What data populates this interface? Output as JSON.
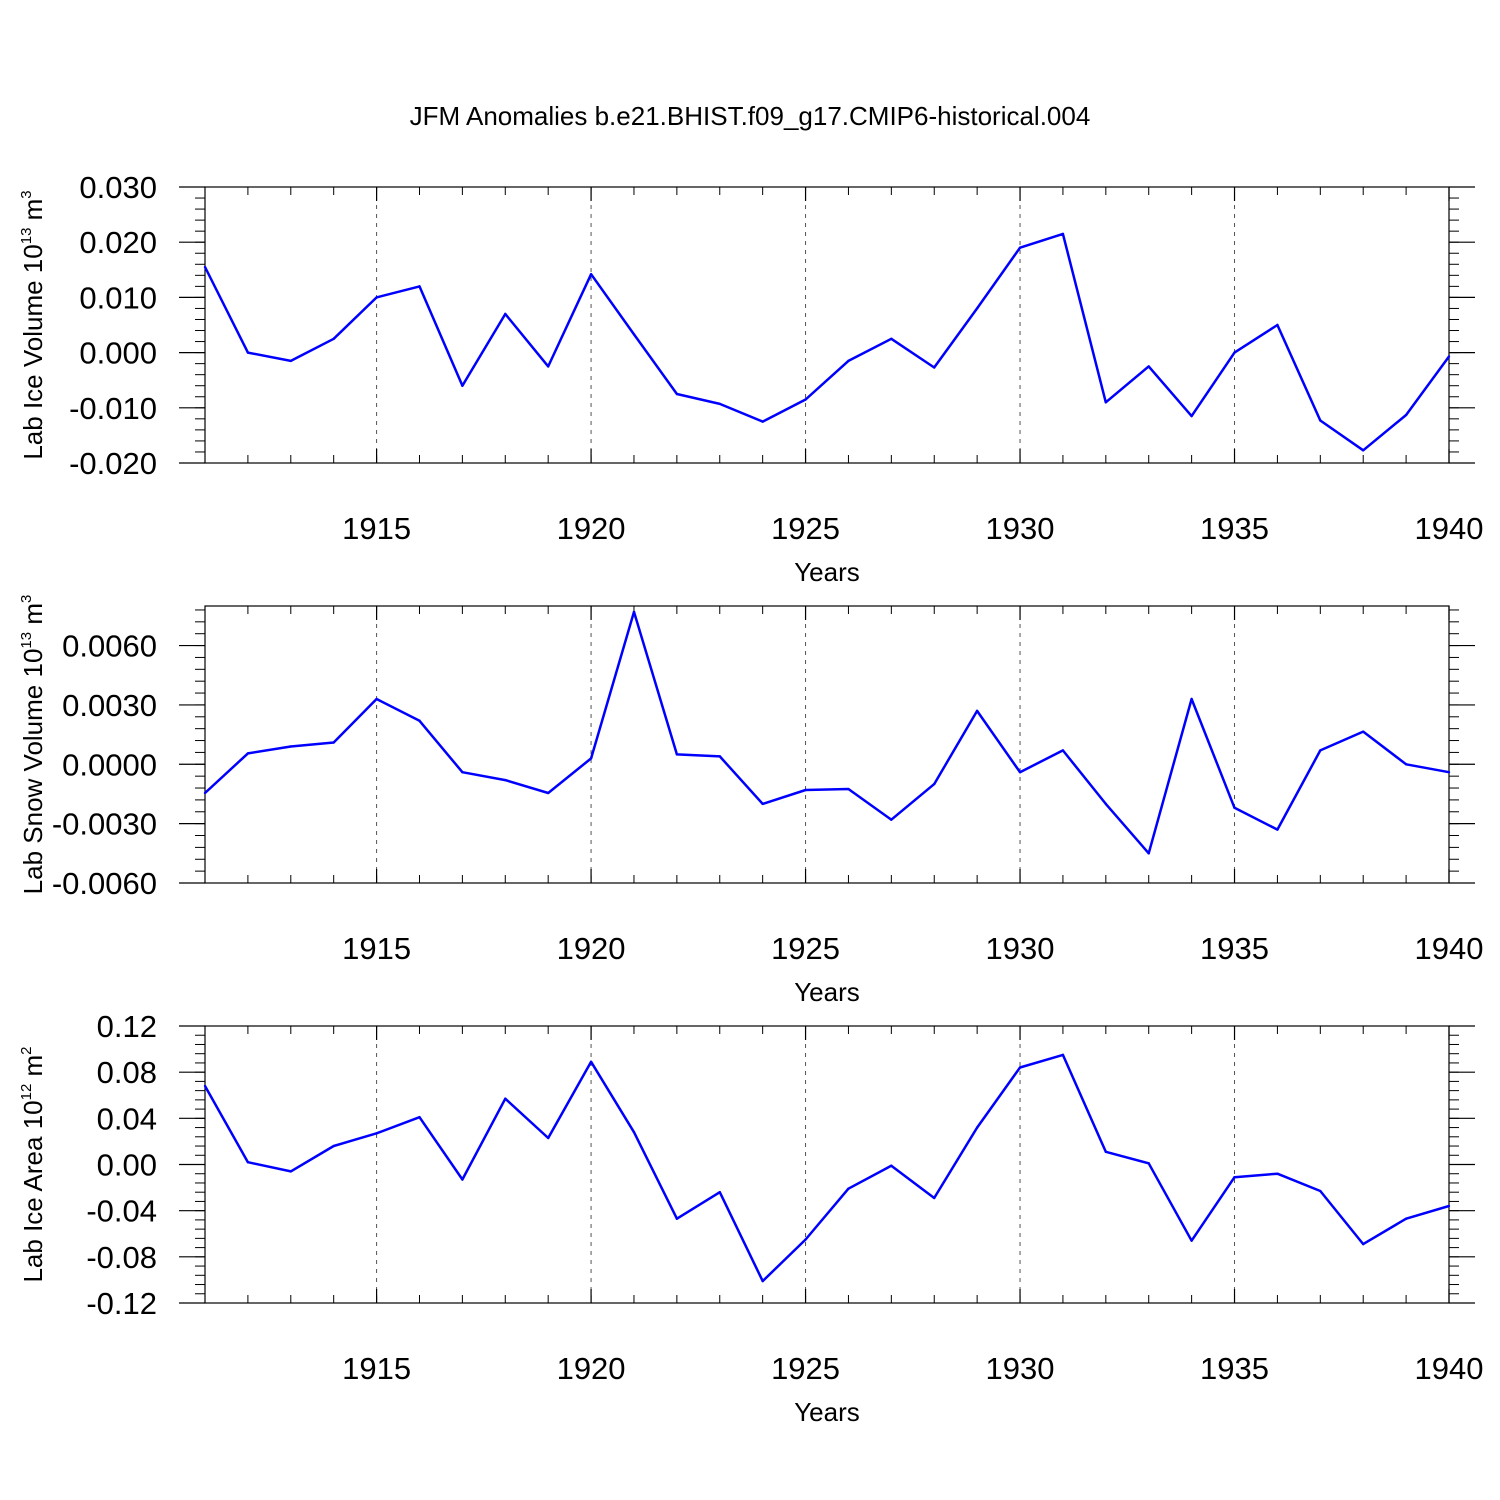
{
  "title": "JFM Anomalies b.e21.BHIST.f09_g17.CMIP6-historical.004",
  "colors": {
    "series": "#0000ff",
    "axis": "#000000",
    "grid": "#555555"
  },
  "chart_data": [
    {
      "type": "line",
      "ylabel": {
        "text": "Lab Ice Volume 10",
        "exp": "13",
        "unit": "m",
        "unit_exp": "3"
      },
      "xlabel": "Years",
      "xlim": [
        1911,
        1940
      ],
      "ylim": [
        -0.02,
        0.03
      ],
      "yticks": [
        -0.02,
        -0.01,
        0.0,
        0.01,
        0.02,
        0.03
      ],
      "yticklabels": [
        "-0.020",
        "-0.010",
        "0.000",
        "0.010",
        "0.020",
        "0.030"
      ],
      "xticks": [
        1915,
        1920,
        1925,
        1930,
        1935,
        1940
      ],
      "xticklabels": [
        "1915",
        "1920",
        "1925",
        "1930",
        "1935",
        "1940"
      ],
      "x": [
        1911,
        1912,
        1913,
        1914,
        1915,
        1916,
        1917,
        1918,
        1919,
        1920,
        1921,
        1922,
        1923,
        1924,
        1925,
        1926,
        1927,
        1928,
        1929,
        1930,
        1931,
        1932,
        1933,
        1934,
        1935,
        1936,
        1937,
        1938,
        1939,
        1940
      ],
      "values": [
        0.0155,
        0.0,
        -0.0015,
        0.0025,
        0.01,
        0.012,
        -0.006,
        0.007,
        -0.0025,
        0.0142,
        0.0033,
        -0.0075,
        -0.0093,
        -0.0125,
        -0.0085,
        -0.0015,
        0.0025,
        -0.0027,
        0.008,
        0.019,
        0.0215,
        -0.009,
        -0.0025,
        -0.0115,
        0.0,
        0.005,
        -0.0123,
        -0.0177,
        -0.0113,
        -0.0007
      ]
    },
    {
      "type": "line",
      "ylabel": {
        "text": "Lab Snow Volume 10",
        "exp": "13",
        "unit": "m",
        "unit_exp": "3"
      },
      "xlabel": "Years",
      "xlim": [
        1911,
        1940
      ],
      "ylim": [
        -0.006,
        0.008
      ],
      "yticks": [
        -0.006,
        -0.003,
        0.0,
        0.003,
        0.006
      ],
      "yticklabels": [
        "-0.0060",
        "-0.0030",
        "0.0000",
        "0.0030",
        "0.0060"
      ],
      "xticks": [
        1915,
        1920,
        1925,
        1930,
        1935,
        1940
      ],
      "xticklabels": [
        "1915",
        "1920",
        "1925",
        "1930",
        "1935",
        "1940"
      ],
      "x": [
        1911,
        1912,
        1913,
        1914,
        1915,
        1916,
        1917,
        1918,
        1919,
        1920,
        1921,
        1922,
        1923,
        1924,
        1925,
        1926,
        1927,
        1928,
        1929,
        1930,
        1931,
        1932,
        1933,
        1934,
        1935,
        1936,
        1937,
        1938,
        1939,
        1940
      ],
      "values": [
        -0.00145,
        0.00055,
        0.0009,
        0.0011,
        0.0033,
        0.0022,
        -0.0004,
        -0.0008,
        -0.00145,
        0.0003,
        0.0077,
        0.0005,
        0.0004,
        -0.002,
        -0.0013,
        -0.00125,
        -0.0028,
        -0.001,
        0.0027,
        -0.0004,
        0.0007,
        -0.002,
        -0.0045,
        0.0033,
        -0.0022,
        -0.0033,
        0.0007,
        0.00165,
        0.0,
        -0.0004
      ]
    },
    {
      "type": "line",
      "ylabel": {
        "text": "Lab Ice Area 10",
        "exp": "12",
        "unit": "m",
        "unit_exp": "2"
      },
      "xlabel": "Years",
      "xlim": [
        1911,
        1940
      ],
      "ylim": [
        -0.12,
        0.12
      ],
      "yticks": [
        -0.12,
        -0.08,
        -0.04,
        0.0,
        0.04,
        0.08,
        0.12
      ],
      "yticklabels": [
        "-0.12",
        "-0.08",
        "-0.04",
        "0.00",
        "0.04",
        "0.08",
        "0.12"
      ],
      "xticks": [
        1915,
        1920,
        1925,
        1930,
        1935,
        1940
      ],
      "xticklabels": [
        "1915",
        "1920",
        "1925",
        "1930",
        "1935",
        "1940"
      ],
      "x": [
        1911,
        1912,
        1913,
        1914,
        1915,
        1916,
        1917,
        1918,
        1919,
        1920,
        1921,
        1922,
        1923,
        1924,
        1925,
        1926,
        1927,
        1928,
        1929,
        1930,
        1931,
        1932,
        1933,
        1934,
        1935,
        1936,
        1937,
        1938,
        1939,
        1940
      ],
      "values": [
        0.068,
        0.002,
        -0.006,
        0.016,
        0.027,
        0.041,
        -0.013,
        0.057,
        0.023,
        0.089,
        0.028,
        -0.047,
        -0.024,
        -0.101,
        -0.065,
        -0.021,
        -0.001,
        -0.029,
        0.032,
        0.084,
        0.095,
        0.011,
        0.001,
        -0.066,
        -0.011,
        -0.008,
        -0.023,
        -0.069,
        -0.047,
        -0.036
      ]
    }
  ]
}
